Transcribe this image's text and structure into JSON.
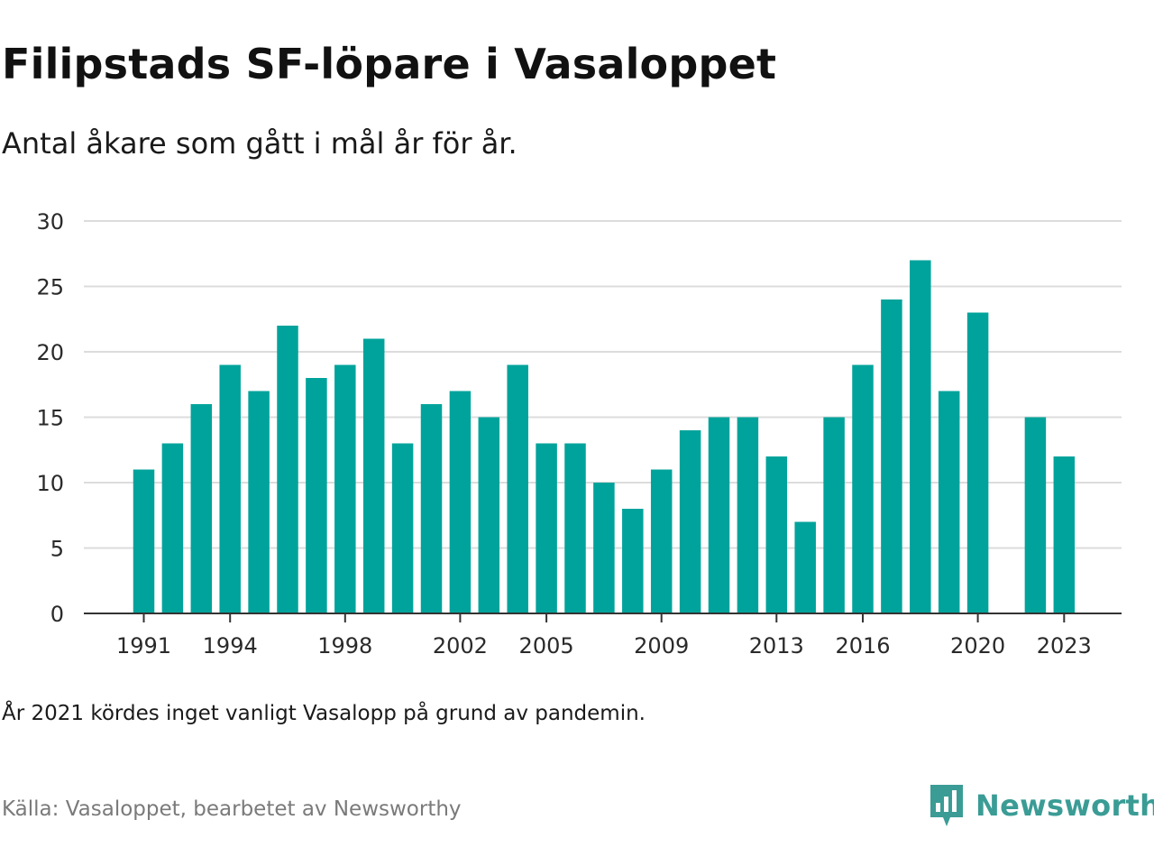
{
  "title": "Filipstads SF-löpare i Vasaloppet",
  "subtitle": "Antal åkare som gått i mål år för år.",
  "note": "År 2021 kördes inget vanligt Vasalopp på grund av pandemin.",
  "source": "Källa: Vasaloppet, bearbetet av Newsworthy",
  "brand": {
    "name": "Newsworthy",
    "icon": "newsworthy-logo-icon",
    "color": "#3a9c95"
  },
  "chart_data": {
    "type": "bar",
    "bar_color": "#00a39b",
    "x": [
      1991,
      1992,
      1993,
      1994,
      1995,
      1996,
      1997,
      1998,
      1999,
      2000,
      2001,
      2002,
      2003,
      2004,
      2005,
      2006,
      2007,
      2008,
      2009,
      2010,
      2011,
      2012,
      2013,
      2014,
      2015,
      2016,
      2017,
      2018,
      2019,
      2020,
      2021,
      2022,
      2023
    ],
    "values": [
      11,
      13,
      16,
      19,
      17,
      22,
      18,
      19,
      21,
      13,
      16,
      17,
      15,
      19,
      13,
      13,
      10,
      8,
      11,
      14,
      15,
      15,
      12,
      7,
      15,
      19,
      24,
      27,
      17,
      23,
      null,
      15,
      12
    ],
    "x_tick_labels": [
      1991,
      1994,
      1998,
      2002,
      2005,
      2009,
      2013,
      2016,
      2020,
      2023
    ],
    "y_ticks": [
      0,
      5,
      10,
      15,
      20,
      25,
      30
    ],
    "ylim": [
      0,
      30
    ],
    "grid": true
  }
}
